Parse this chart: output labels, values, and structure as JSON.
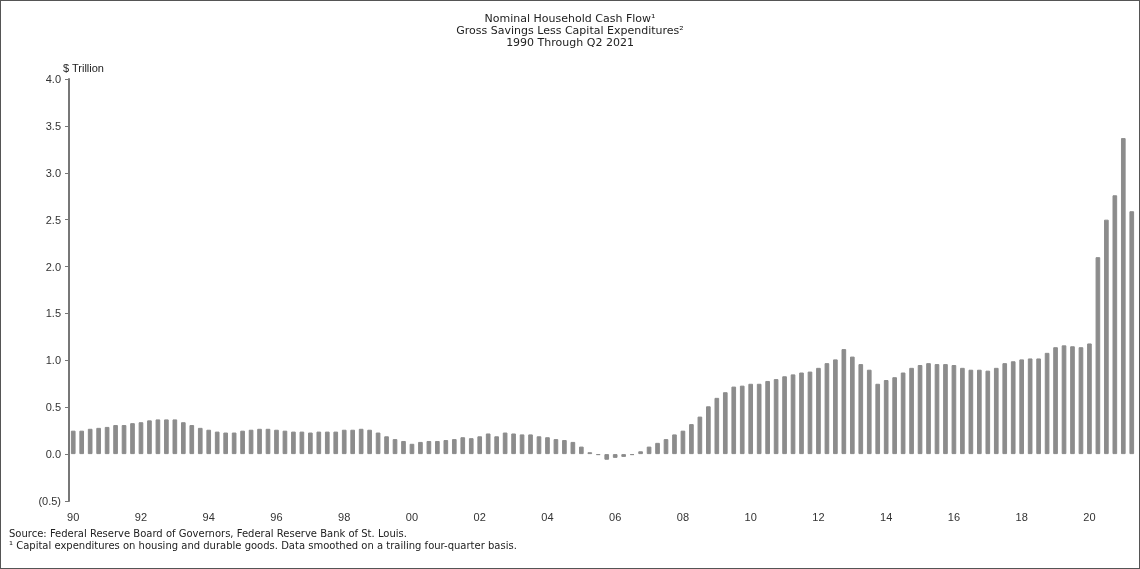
{
  "chart_data": {
    "type": "bar",
    "title": "Nominal Household Cash Flow¹",
    "subtitle": "Gross Savings Less Capital Expenditures²\n1990 Through Q2 2021",
    "ylabel": "$ Trillion",
    "annotations": [
      "Source: Federal Reserve Board of Governors, Federal Reserve Bank of St. Louis.",
      "¹ Capital expenditures on housing and durable goods.  Data smoothed on a trailing four-quarter basis."
    ],
    "categories": [
      "90",
      null,
      null,
      null,
      null,
      null,
      null,
      null,
      "92",
      null,
      null,
      null,
      null,
      null,
      null,
      null,
      "94",
      null,
      null,
      null,
      null,
      null,
      null,
      null,
      "96",
      null,
      null,
      null,
      null,
      null,
      null,
      null,
      "98",
      null,
      null,
      null,
      null,
      null,
      null,
      null,
      "00",
      null,
      null,
      null,
      null,
      null,
      null,
      null,
      "02",
      null,
      null,
      null,
      null,
      null,
      null,
      null,
      "04",
      null,
      null,
      null,
      null,
      null,
      null,
      null,
      "06",
      null,
      null,
      null,
      null,
      null,
      null,
      null,
      "08",
      null,
      null,
      null,
      null,
      null,
      null,
      null,
      "10",
      null,
      null,
      null,
      null,
      null,
      null,
      null,
      "12",
      null,
      null,
      null,
      null,
      null,
      null,
      null,
      "14",
      null,
      null,
      null,
      null,
      null,
      null,
      null,
      "16",
      null,
      null,
      null,
      null,
      null,
      null,
      null,
      "18",
      null,
      null,
      null,
      null,
      null,
      null,
      null,
      "20",
      null,
      null,
      null,
      null,
      null
    ],
    "values": [
      0.25,
      0.25,
      0.27,
      0.28,
      0.29,
      0.31,
      0.31,
      0.33,
      0.34,
      0.36,
      0.37,
      0.37,
      0.37,
      0.34,
      0.31,
      0.28,
      0.26,
      0.24,
      0.23,
      0.23,
      0.25,
      0.26,
      0.27,
      0.27,
      0.26,
      0.25,
      0.24,
      0.24,
      0.23,
      0.24,
      0.24,
      0.24,
      0.26,
      0.26,
      0.27,
      0.26,
      0.23,
      0.19,
      0.16,
      0.14,
      0.11,
      0.13,
      0.14,
      0.14,
      0.15,
      0.16,
      0.18,
      0.17,
      0.19,
      0.22,
      0.19,
      0.23,
      0.22,
      0.21,
      0.21,
      0.19,
      0.18,
      0.16,
      0.15,
      0.13,
      0.08,
      0.02,
      -0.01,
      -0.06,
      -0.04,
      -0.03,
      -0.01,
      0.03,
      0.08,
      0.12,
      0.16,
      0.21,
      0.25,
      0.32,
      0.4,
      0.51,
      0.6,
      0.66,
      0.72,
      0.73,
      0.75,
      0.75,
      0.78,
      0.8,
      0.83,
      0.85,
      0.87,
      0.88,
      0.92,
      0.97,
      1.01,
      1.12,
      1.04,
      0.96,
      0.9,
      0.75,
      0.79,
      0.82,
      0.87,
      0.92,
      0.95,
      0.97,
      0.96,
      0.96,
      0.95,
      0.92,
      0.9,
      0.9,
      0.89,
      0.92,
      0.97,
      0.99,
      1.01,
      1.02,
      1.02,
      1.08,
      1.14,
      1.16,
      1.15,
      1.14,
      1.18,
      2.1,
      2.5,
      2.76,
      3.37,
      2.59
    ],
    "color": "#8c8c8c",
    "ylim": [
      -0.5,
      4.0
    ],
    "yticks": [
      {
        "value": -0.5,
        "label": "(0.5)"
      },
      {
        "value": 0,
        "label": "0.0"
      },
      {
        "value": 0.5,
        "label": "0.5"
      },
      {
        "value": 1,
        "label": "1.0"
      },
      {
        "value": 1.5,
        "label": "1.5"
      },
      {
        "value": 2,
        "label": "2.0"
      },
      {
        "value": 2.5,
        "label": "2.5"
      },
      {
        "value": 3,
        "label": "3.0"
      },
      {
        "value": 3.5,
        "label": "3.5"
      },
      {
        "value": 4,
        "label": "4.0"
      }
    ],
    "grid": false
  }
}
